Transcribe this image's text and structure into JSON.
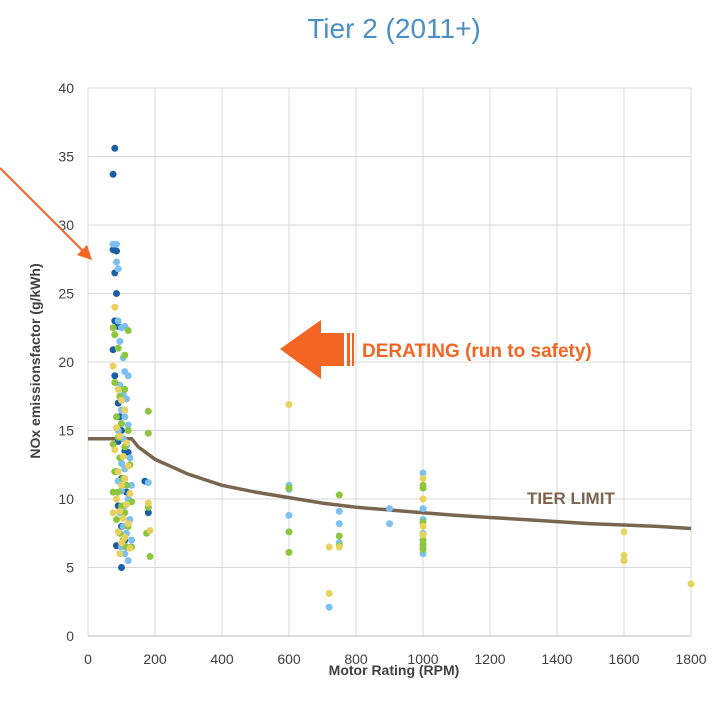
{
  "chart_data": {
    "type": "scatter",
    "title": "Tier 2 (2011+)",
    "xlabel": "Motor Rating (RPM)",
    "ylabel": "NOx emissionsfactor (g/kWh)",
    "xlim": [
      0,
      1800
    ],
    "ylim": [
      0,
      40
    ],
    "x_ticks": [
      "0",
      "200",
      "400",
      "600",
      "800",
      "1000",
      "1200",
      "1400",
      "1600",
      "1800"
    ],
    "y_ticks": [
      "0",
      "5",
      "10",
      "15",
      "20",
      "25",
      "30",
      "35",
      "40"
    ],
    "grid": true,
    "legend": "none",
    "colors": {
      "dark_blue": "#1a5ea6",
      "light_blue": "#7cc0f0",
      "green": "#8cc63f",
      "yellow": "#e8d25e",
      "tier_line": "#7a6650",
      "annotation": "#f26522"
    },
    "series": [
      {
        "color": "dark_blue",
        "points": [
          [
            80,
            35.6
          ],
          [
            75,
            33.7
          ],
          [
            75,
            28.2
          ],
          [
            85,
            28.1
          ],
          [
            80,
            26.5
          ],
          [
            85,
            25.0
          ],
          [
            80,
            23.0
          ],
          [
            90,
            22.6
          ],
          [
            75,
            20.9
          ],
          [
            80,
            19.0
          ],
          [
            90,
            17.0
          ],
          [
            95,
            16.0
          ],
          [
            100,
            15.0
          ],
          [
            90,
            14.2
          ],
          [
            110,
            13.5
          ],
          [
            120,
            13.4
          ],
          [
            85,
            12.0
          ],
          [
            100,
            11.5
          ],
          [
            115,
            10.5
          ],
          [
            90,
            9.5
          ],
          [
            125,
            9.8
          ],
          [
            100,
            8.0
          ],
          [
            110,
            7.0
          ],
          [
            85,
            6.6
          ],
          [
            100,
            5.0
          ],
          [
            170,
            11.3
          ],
          [
            180,
            9.0
          ]
        ]
      },
      {
        "color": "light_blue",
        "points": [
          [
            75,
            28.6
          ],
          [
            85,
            28.6
          ],
          [
            85,
            27.3
          ],
          [
            90,
            26.8
          ],
          [
            90,
            23.0
          ],
          [
            100,
            22.5
          ],
          [
            110,
            22.6
          ],
          [
            95,
            21.5
          ],
          [
            105,
            20.3
          ],
          [
            110,
            19.3
          ],
          [
            120,
            19.0
          ],
          [
            95,
            18.3
          ],
          [
            105,
            17.6
          ],
          [
            115,
            17.3
          ],
          [
            100,
            16.5
          ],
          [
            110,
            16.0
          ],
          [
            120,
            15.4
          ],
          [
            90,
            15.0
          ],
          [
            105,
            14.4
          ],
          [
            115,
            13.9
          ],
          [
            125,
            13.0
          ],
          [
            100,
            12.6
          ],
          [
            110,
            12.2
          ],
          [
            90,
            11.3
          ],
          [
            130,
            11.0
          ],
          [
            100,
            10.6
          ],
          [
            120,
            10.0
          ],
          [
            110,
            9.5
          ],
          [
            95,
            9.0
          ],
          [
            125,
            8.5
          ],
          [
            105,
            8.0
          ],
          [
            115,
            7.5
          ],
          [
            130,
            7.0
          ],
          [
            100,
            6.5
          ],
          [
            110,
            6.0
          ],
          [
            120,
            5.5
          ],
          [
            180,
            11.2
          ],
          [
            600,
            11.0
          ],
          [
            600,
            10.7
          ],
          [
            600,
            8.8
          ],
          [
            720,
            2.1
          ],
          [
            750,
            9.1
          ],
          [
            750,
            8.2
          ],
          [
            750,
            6.8
          ],
          [
            900,
            9.3
          ],
          [
            900,
            8.2
          ],
          [
            1000,
            11.9
          ],
          [
            1000,
            9.3
          ],
          [
            1000,
            8.5
          ],
          [
            1000,
            7.5
          ],
          [
            1000,
            6.5
          ],
          [
            1000,
            6.0
          ]
        ]
      },
      {
        "color": "green",
        "points": [
          [
            75,
            22.5
          ],
          [
            80,
            22.0
          ],
          [
            90,
            21.0
          ],
          [
            110,
            20.5
          ],
          [
            120,
            22.3
          ],
          [
            80,
            18.5
          ],
          [
            95,
            17.5
          ],
          [
            110,
            18.0
          ],
          [
            85,
            16.0
          ],
          [
            100,
            15.5
          ],
          [
            120,
            15.0
          ],
          [
            90,
            14.5
          ],
          [
            75,
            14.0
          ],
          [
            110,
            13.8
          ],
          [
            95,
            13.0
          ],
          [
            125,
            12.5
          ],
          [
            80,
            12.0
          ],
          [
            105,
            11.5
          ],
          [
            115,
            11.0
          ],
          [
            90,
            10.5
          ],
          [
            75,
            10.5
          ],
          [
            130,
            9.8
          ],
          [
            100,
            9.5
          ],
          [
            110,
            9.0
          ],
          [
            85,
            8.5
          ],
          [
            120,
            8.0
          ],
          [
            95,
            7.5
          ],
          [
            105,
            7.0
          ],
          [
            130,
            6.5
          ],
          [
            115,
            6.5
          ],
          [
            180,
            16.4
          ],
          [
            180,
            14.8
          ],
          [
            180,
            9.4
          ],
          [
            185,
            5.8
          ],
          [
            175,
            7.5
          ],
          [
            600,
            10.8
          ],
          [
            600,
            7.6
          ],
          [
            600,
            6.1
          ],
          [
            750,
            10.3
          ],
          [
            750,
            7.3
          ],
          [
            750,
            6.6
          ],
          [
            1000,
            11.0
          ],
          [
            1000,
            10.8
          ],
          [
            1000,
            8.3
          ],
          [
            1000,
            7.0
          ],
          [
            1000,
            6.7
          ],
          [
            1000,
            6.3
          ]
        ]
      },
      {
        "color": "yellow",
        "points": [
          [
            80,
            24.0
          ],
          [
            75,
            19.7
          ],
          [
            90,
            18.0
          ],
          [
            100,
            17.2
          ],
          [
            110,
            16.5
          ],
          [
            85,
            15.2
          ],
          [
            95,
            14.6
          ],
          [
            115,
            14.1
          ],
          [
            80,
            13.6
          ],
          [
            105,
            13.1
          ],
          [
            120,
            12.4
          ],
          [
            90,
            12.0
          ],
          [
            110,
            11.5
          ],
          [
            100,
            11.0
          ],
          [
            125,
            10.4
          ],
          [
            85,
            10.0
          ],
          [
            115,
            9.6
          ],
          [
            95,
            9.1
          ],
          [
            75,
            9.0
          ],
          [
            105,
            8.6
          ],
          [
            120,
            8.2
          ],
          [
            90,
            7.6
          ],
          [
            110,
            7.2
          ],
          [
            100,
            6.8
          ],
          [
            125,
            6.4
          ],
          [
            95,
            6.0
          ],
          [
            180,
            9.7
          ],
          [
            185,
            7.7
          ],
          [
            600,
            16.9
          ],
          [
            720,
            6.5
          ],
          [
            720,
            3.1
          ],
          [
            750,
            6.5
          ],
          [
            1000,
            11.5
          ],
          [
            1000,
            10.0
          ],
          [
            1000,
            8.0
          ],
          [
            1000,
            7.4
          ],
          [
            1600,
            7.6
          ],
          [
            1600,
            5.9
          ],
          [
            1600,
            5.5
          ],
          [
            1800,
            3.8
          ]
        ]
      }
    ],
    "tier_limit": {
      "label": "TIER LIMIT",
      "points": [
        [
          0,
          14.4
        ],
        [
          130,
          14.4
        ],
        [
          150,
          13.8
        ],
        [
          200,
          12.9
        ],
        [
          300,
          11.8
        ],
        [
          400,
          11.0
        ],
        [
          500,
          10.5
        ],
        [
          600,
          10.1
        ],
        [
          700,
          9.7
        ],
        [
          800,
          9.4
        ],
        [
          900,
          9.2
        ],
        [
          1000,
          9.0
        ],
        [
          1100,
          8.8
        ],
        [
          1200,
          8.65
        ],
        [
          1300,
          8.5
        ],
        [
          1400,
          8.35
        ],
        [
          1500,
          8.2
        ],
        [
          1600,
          8.1
        ],
        [
          1700,
          8.0
        ],
        [
          1800,
          7.85
        ]
      ]
    },
    "annotations": [
      {
        "text": "DERATING (run to safety)"
      }
    ]
  }
}
